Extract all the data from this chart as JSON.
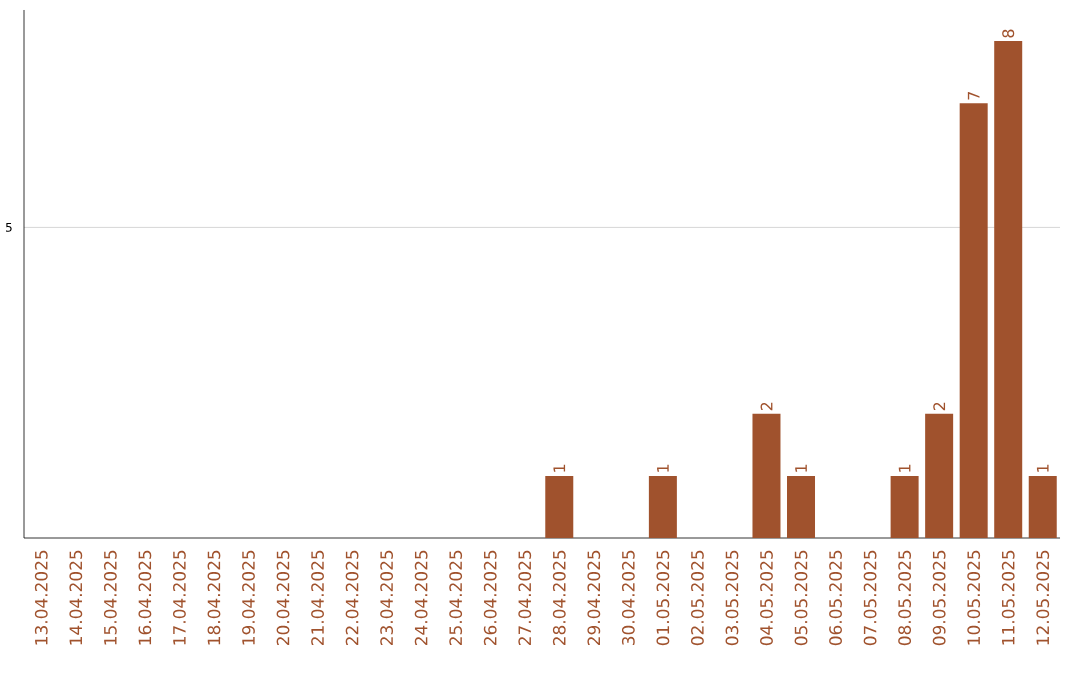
{
  "chart_data": {
    "type": "bar",
    "categories": [
      "13.04.2025",
      "14.04.2025",
      "15.04.2025",
      "16.04.2025",
      "17.04.2025",
      "18.04.2025",
      "19.04.2025",
      "20.04.2025",
      "21.04.2025",
      "22.04.2025",
      "23.04.2025",
      "24.04.2025",
      "25.04.2025",
      "26.04.2025",
      "27.04.2025",
      "28.04.2025",
      "29.04.2025",
      "30.04.2025",
      "01.05.2025",
      "02.05.2025",
      "03.05.2025",
      "04.05.2025",
      "05.05.2025",
      "06.05.2025",
      "07.05.2025",
      "08.05.2025",
      "09.05.2025",
      "10.05.2025",
      "11.05.2025",
      "12.05.2025"
    ],
    "values": [
      null,
      null,
      null,
      null,
      null,
      null,
      null,
      null,
      null,
      null,
      null,
      null,
      null,
      null,
      null,
      1,
      null,
      null,
      1,
      null,
      null,
      2,
      1,
      null,
      null,
      1,
      2,
      7,
      8,
      1
    ],
    "data_labels": true,
    "color": "#a0522d",
    "ylim": [
      0,
      8.5
    ],
    "yticks": [
      5
    ],
    "grid": "y"
  }
}
